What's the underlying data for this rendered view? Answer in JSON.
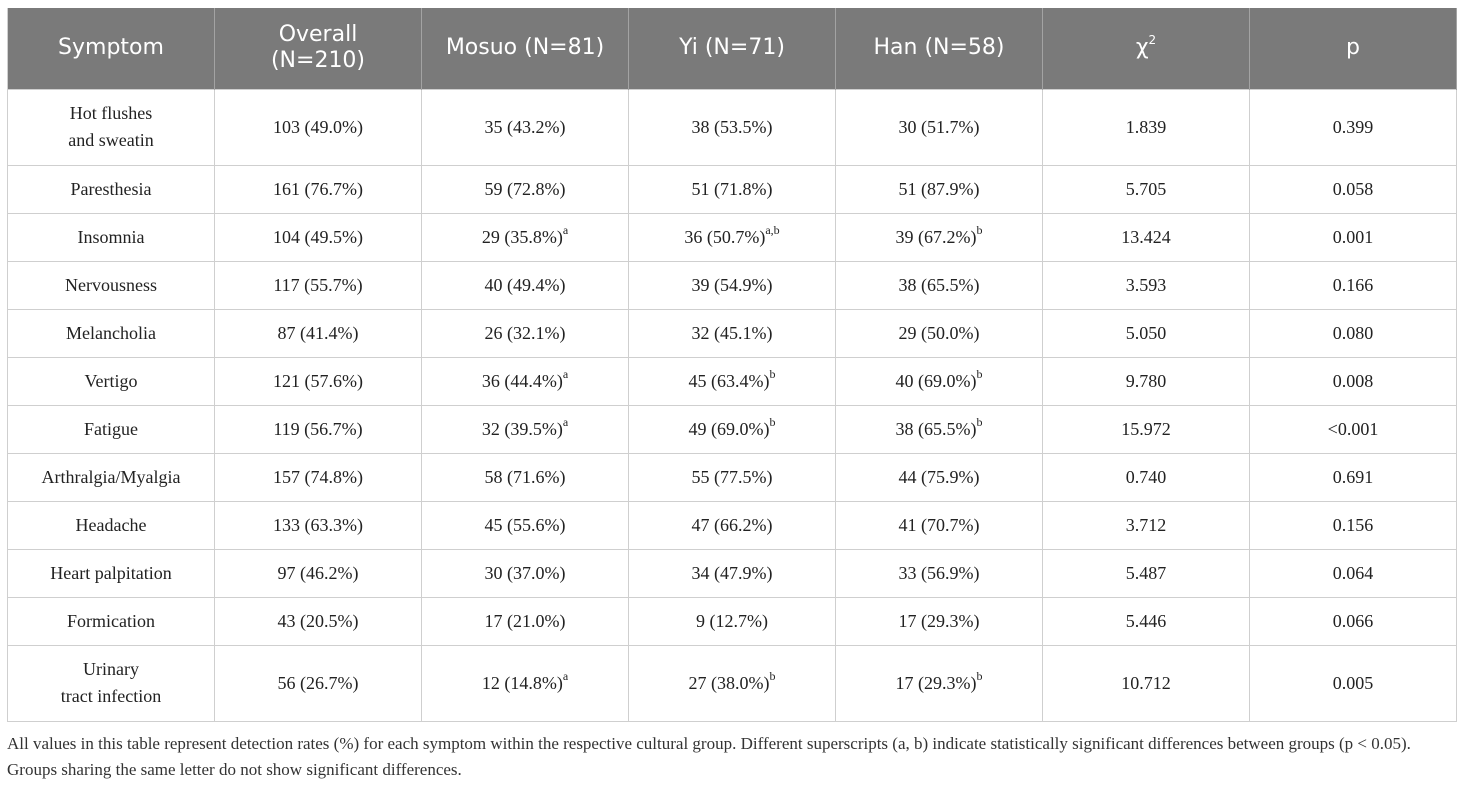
{
  "table": {
    "headers": [
      "Symptom",
      "Overall\n(N=210)",
      "Mosuo (N=81)",
      "Yi (N=71)",
      "Han (N=58)",
      "χ",
      "p"
    ],
    "chi_sup": "2",
    "rows": [
      {
        "symptom": "Hot flushes\nand sweatin",
        "overall": "103 (49.0%)",
        "mosuo": "35 (43.2%)",
        "mosuo_sup": "",
        "yi": "38 (53.5%)",
        "yi_sup": "",
        "han": "30 (51.7%)",
        "han_sup": "",
        "chi2": "1.839",
        "p": "0.399"
      },
      {
        "symptom": "Paresthesia",
        "overall": "161 (76.7%)",
        "mosuo": "59 (72.8%)",
        "mosuo_sup": "",
        "yi": "51 (71.8%)",
        "yi_sup": "",
        "han": "51 (87.9%)",
        "han_sup": "",
        "chi2": "5.705",
        "p": "0.058"
      },
      {
        "symptom": "Insomnia",
        "overall": "104 (49.5%)",
        "mosuo": "29 (35.8%)",
        "mosuo_sup": "a",
        "yi": "36 (50.7%)",
        "yi_sup": "a,b",
        "han": "39 (67.2%)",
        "han_sup": "b",
        "chi2": "13.424",
        "p": "0.001"
      },
      {
        "symptom": "Nervousness",
        "overall": "117 (55.7%)",
        "mosuo": "40 (49.4%)",
        "mosuo_sup": "",
        "yi": "39 (54.9%)",
        "yi_sup": "",
        "han": "38 (65.5%)",
        "han_sup": "",
        "chi2": "3.593",
        "p": "0.166"
      },
      {
        "symptom": "Melancholia",
        "overall": "87 (41.4%)",
        "mosuo": "26 (32.1%)",
        "mosuo_sup": "",
        "yi": "32 (45.1%)",
        "yi_sup": "",
        "han": "29 (50.0%)",
        "han_sup": "",
        "chi2": "5.050",
        "p": "0.080"
      },
      {
        "symptom": "Vertigo",
        "overall": "121 (57.6%)",
        "mosuo": "36 (44.4%)",
        "mosuo_sup": "a",
        "yi": "45 (63.4%)",
        "yi_sup": "b",
        "han": "40 (69.0%)",
        "han_sup": "b",
        "chi2": "9.780",
        "p": "0.008"
      },
      {
        "symptom": "Fatigue",
        "overall": "119 (56.7%)",
        "mosuo": "32 (39.5%)",
        "mosuo_sup": "a",
        "yi": "49 (69.0%)",
        "yi_sup": "b",
        "han": "38 (65.5%)",
        "han_sup": "b",
        "chi2": "15.972",
        "p": "<0.001"
      },
      {
        "symptom": "Arthralgia/Myalgia",
        "overall": "157 (74.8%)",
        "mosuo": "58 (71.6%)",
        "mosuo_sup": "",
        "yi": "55 (77.5%)",
        "yi_sup": "",
        "han": "44 (75.9%)",
        "han_sup": "",
        "chi2": "0.740",
        "p": "0.691"
      },
      {
        "symptom": "Headache",
        "overall": "133 (63.3%)",
        "mosuo": "45 (55.6%)",
        "mosuo_sup": "",
        "yi": "47 (66.2%)",
        "yi_sup": "",
        "han": "41 (70.7%)",
        "han_sup": "",
        "chi2": "3.712",
        "p": "0.156"
      },
      {
        "symptom": "Heart palpitation",
        "overall": "97 (46.2%)",
        "mosuo": "30 (37.0%)",
        "mosuo_sup": "",
        "yi": "34 (47.9%)",
        "yi_sup": "",
        "han": "33 (56.9%)",
        "han_sup": "",
        "chi2": "5.487",
        "p": "0.064"
      },
      {
        "symptom": "Formication",
        "overall": "43 (20.5%)",
        "mosuo": "17 (21.0%)",
        "mosuo_sup": "",
        "yi": "9 (12.7%)",
        "yi_sup": "",
        "han": "17 (29.3%)",
        "han_sup": "",
        "chi2": "5.446",
        "p": "0.066"
      },
      {
        "symptom": "Urinary\ntract infection",
        "overall": "56 (26.7%)",
        "mosuo": "12 (14.8%)",
        "mosuo_sup": "a",
        "yi": "27 (38.0%)",
        "yi_sup": "b",
        "han": "17 (29.3%)",
        "han_sup": "b",
        "chi2": "10.712",
        "p": "0.005"
      }
    ]
  },
  "footnote": "All values in this table represent detection rates (%) for each symptom within the respective cultural group. Different superscripts (a, b) indicate statistically significant differences between groups (p < 0.05). Groups sharing the same letter do not show significant differences."
}
